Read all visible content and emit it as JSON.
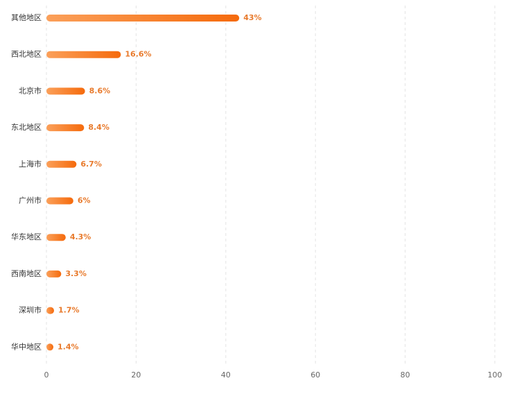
{
  "chart_data": {
    "type": "hbar",
    "categories": [
      "其他地区",
      "西北地区",
      "北京市",
      "东北地区",
      "上海市",
      "广州市",
      "华东地区",
      "西南地区",
      "深圳市",
      "华中地区"
    ],
    "values": [
      43,
      16.6,
      8.6,
      8.4,
      6.7,
      6,
      4.3,
      3.3,
      1.7,
      1.4
    ],
    "value_labels": [
      "43%",
      "16.6%",
      "8.6%",
      "8.4%",
      "6.7%",
      "6%",
      "4.3%",
      "3.3%",
      "1.7%",
      "1.4%"
    ],
    "color": [
      "#fba05a",
      "#f56a0c"
    ],
    "label_color": "#e87a2c",
    "xlim": [
      0,
      100
    ],
    "xticks": [
      0,
      20,
      40,
      60,
      80,
      100
    ],
    "grid": true
  }
}
